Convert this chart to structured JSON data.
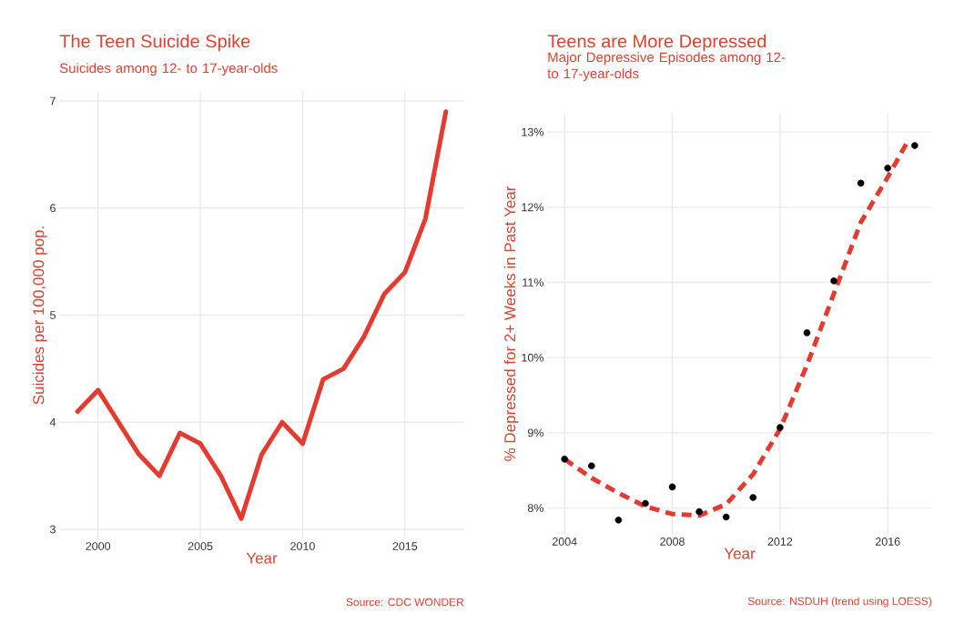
{
  "chart_data": [
    {
      "type": "line",
      "title": "The Teen Suicide Spike",
      "subtitle": "Suicides among 12- to 17-year-olds",
      "xlabel": "Year",
      "ylabel": "Suicides per 100,000 pop.",
      "annotations": [
        "Source: CDC WONDER"
      ],
      "x": [
        1999,
        2000,
        2001,
        2002,
        2003,
        2004,
        2005,
        2006,
        2007,
        2008,
        2009,
        2010,
        2011,
        2012,
        2013,
        2014,
        2015,
        2016,
        2017
      ],
      "values": [
        4.1,
        4.3,
        4.0,
        3.7,
        3.5,
        3.9,
        3.8,
        3.5,
        3.1,
        3.7,
        4.0,
        3.8,
        4.4,
        4.5,
        4.8,
        5.2,
        5.4,
        5.9,
        6.9
      ],
      "color": "#e53a2f",
      "line_style": "solid",
      "xlim": [
        1998.1,
        2017.9
      ],
      "ylim": [
        2.91,
        7.09
      ],
      "xticks": [
        2000,
        2005,
        2010,
        2015
      ],
      "yticks": [
        3,
        4,
        5,
        6,
        7
      ],
      "grid": true
    },
    {
      "type": "scatter",
      "title": "Teens are More Depressed",
      "subtitle": "Major Depressive Episodes among 12- to 17-year-olds",
      "xlabel": "Year",
      "ylabel": "% Depressed for 2+ Weeks in Past Year",
      "annotations": [
        "Source: NSDUH (trend using LOESS)"
      ],
      "series": [
        {
          "type": "scatter",
          "marker": "circle",
          "color": "#000000",
          "x": [
            2004,
            2005,
            2006,
            2007,
            2008,
            2009,
            2010,
            2011,
            2012,
            2013,
            2014,
            2015,
            2016,
            2017
          ],
          "values": [
            8.65,
            8.56,
            7.84,
            8.06,
            8.28,
            7.95,
            7.88,
            8.14,
            9.07,
            10.33,
            11.02,
            12.32,
            12.52,
            12.82
          ]
        },
        {
          "type": "line",
          "line_style": "dashed",
          "color": "#e53a2f",
          "x": [
            2004,
            2005,
            2006,
            2007,
            2008,
            2009,
            2010,
            2011,
            2012,
            2013,
            2014,
            2015,
            2016,
            2016.7
          ],
          "values": [
            8.65,
            8.4,
            8.2,
            8.02,
            7.92,
            7.9,
            8.05,
            8.45,
            9.05,
            9.9,
            10.85,
            11.8,
            12.4,
            12.85
          ]
        }
      ],
      "xlim": [
        2003.35,
        2017.65
      ],
      "ylim": [
        7.65,
        13.25
      ],
      "xticks": [
        2004,
        2008,
        2012,
        2016
      ],
      "yticks": [
        {
          "value": 8,
          "label": "8%"
        },
        {
          "value": 9,
          "label": "9%"
        },
        {
          "value": 10,
          "label": "10%"
        },
        {
          "value": 11,
          "label": "11%"
        },
        {
          "value": 12,
          "label": "12%"
        },
        {
          "value": 13,
          "label": "13%"
        }
      ],
      "grid": true
    }
  ]
}
